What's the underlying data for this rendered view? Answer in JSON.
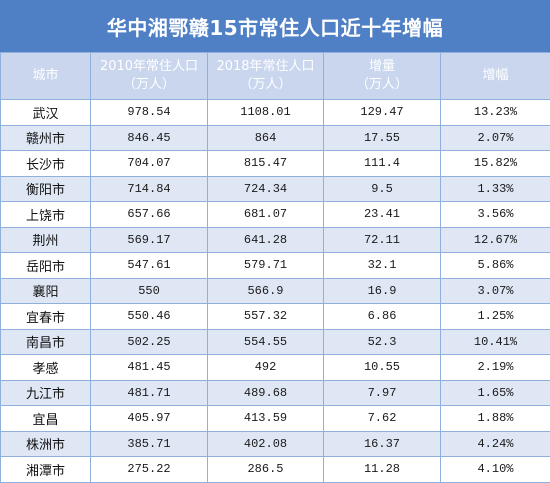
{
  "title": "华中湘鄂赣15市常住人口近十年增幅",
  "headers": [
    {
      "line1": "城市",
      "line2": ""
    },
    {
      "line1": "2010年常住人口",
      "line2": "（万人）"
    },
    {
      "line1": "2018年常住人口",
      "line2": "（万人）"
    },
    {
      "line1": "增量",
      "line2": "（万人）"
    },
    {
      "line1": "增幅",
      "line2": ""
    }
  ],
  "rows": [
    {
      "city": "武汉",
      "pop2010": "978.54",
      "pop2018": "1108.01",
      "increase": "129.47",
      "rate": "13.23%"
    },
    {
      "city": "赣州市",
      "pop2010": "846.45",
      "pop2018": "864",
      "increase": "17.55",
      "rate": "2.07%"
    },
    {
      "city": "长沙市",
      "pop2010": "704.07",
      "pop2018": "815.47",
      "increase": "111.4",
      "rate": "15.82%"
    },
    {
      "city": "衡阳市",
      "pop2010": "714.84",
      "pop2018": "724.34",
      "increase": "9.5",
      "rate": "1.33%"
    },
    {
      "city": "上饶市",
      "pop2010": "657.66",
      "pop2018": "681.07",
      "increase": "23.41",
      "rate": "3.56%"
    },
    {
      "city": "荆州",
      "pop2010": "569.17",
      "pop2018": "641.28",
      "increase": "72.11",
      "rate": "12.67%"
    },
    {
      "city": "岳阳市",
      "pop2010": "547.61",
      "pop2018": "579.71",
      "increase": "32.1",
      "rate": "5.86%"
    },
    {
      "city": "襄阳",
      "pop2010": "550",
      "pop2018": "566.9",
      "increase": "16.9",
      "rate": "3.07%"
    },
    {
      "city": "宜春市",
      "pop2010": "550.46",
      "pop2018": "557.32",
      "increase": "6.86",
      "rate": "1.25%"
    },
    {
      "city": "南昌市",
      "pop2010": "502.25",
      "pop2018": "554.55",
      "increase": "52.3",
      "rate": "10.41%"
    },
    {
      "city": "孝感",
      "pop2010": "481.45",
      "pop2018": "492",
      "increase": "10.55",
      "rate": "2.19%"
    },
    {
      "city": "九江市",
      "pop2010": "481.71",
      "pop2018": "489.68",
      "increase": "7.97",
      "rate": "1.65%"
    },
    {
      "city": "宜昌",
      "pop2010": "405.97",
      "pop2018": "413.59",
      "increase": "7.62",
      "rate": "1.88%"
    },
    {
      "city": "株洲市",
      "pop2010": "385.71",
      "pop2018": "402.08",
      "increase": "16.37",
      "rate": "4.24%"
    },
    {
      "city": "湘潭市",
      "pop2010": "275.22",
      "pop2018": "286.5",
      "increase": "11.28",
      "rate": "4.10%"
    }
  ],
  "colors": {
    "title_bg": "#4f7fc4",
    "header_bg": "#c9d6ee",
    "alt_row_bg": "#dfe7f5",
    "border": "#8fb0dc"
  }
}
